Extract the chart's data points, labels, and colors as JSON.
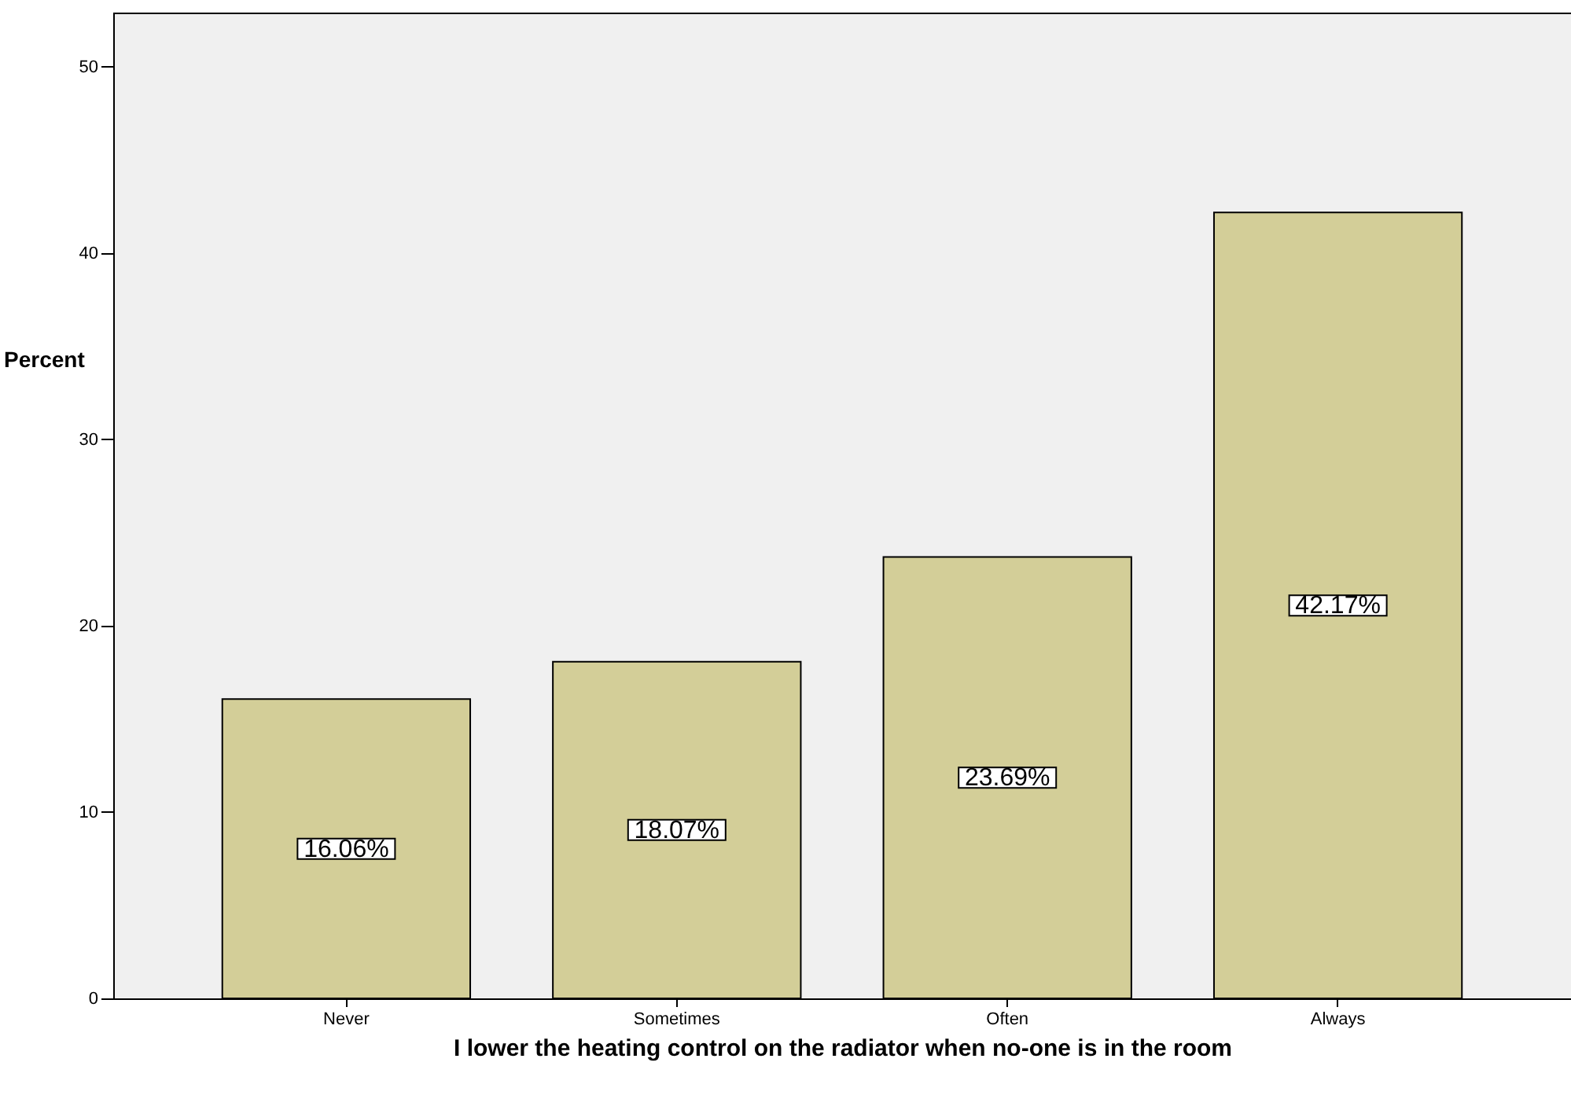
{
  "chart_data": {
    "type": "bar",
    "xlabel": "I lower the heating control on the radiator when no-one is in the room",
    "ylabel": "Percent",
    "categories": [
      "Never",
      "Sometimes",
      "Often",
      "Always"
    ],
    "values": [
      16.06,
      18.07,
      23.69,
      42.17
    ],
    "value_labels": [
      "16.06%",
      "18.07%",
      "23.69%",
      "42.17%"
    ],
    "color": "#d3ce98",
    "ylim": [
      0,
      52.9
    ],
    "yticks": [
      0,
      10,
      20,
      30,
      40,
      50
    ],
    "grid": false
  }
}
